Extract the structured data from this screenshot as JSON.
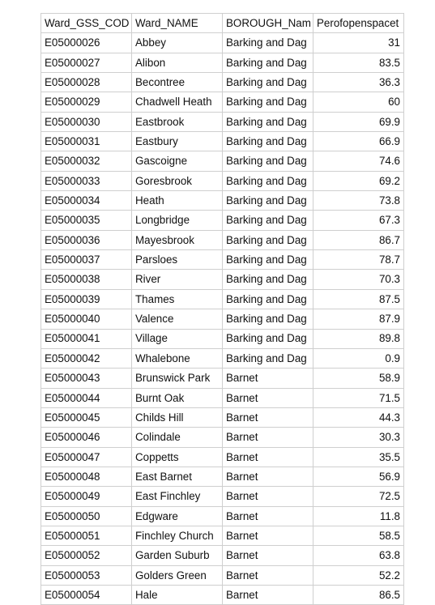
{
  "headers": [
    "Ward_GSS_COD",
    "Ward_NAME",
    "BOROUGH_Nam",
    "Perofopenspacet"
  ],
  "rows": [
    [
      "E05000026",
      "Abbey",
      "Barking and Dag",
      "31"
    ],
    [
      "E05000027",
      "Alibon",
      "Barking and Dag",
      "83.5"
    ],
    [
      "E05000028",
      "Becontree",
      "Barking and Dag",
      "36.3"
    ],
    [
      "E05000029",
      "Chadwell Heath",
      "Barking and Dag",
      "60"
    ],
    [
      "E05000030",
      "Eastbrook",
      "Barking and Dag",
      "69.9"
    ],
    [
      "E05000031",
      "Eastbury",
      "Barking and Dag",
      "66.9"
    ],
    [
      "E05000032",
      "Gascoigne",
      "Barking and Dag",
      "74.6"
    ],
    [
      "E05000033",
      "Goresbrook",
      "Barking and Dag",
      "69.2"
    ],
    [
      "E05000034",
      "Heath",
      "Barking and Dag",
      "73.8"
    ],
    [
      "E05000035",
      "Longbridge",
      "Barking and Dag",
      "67.3"
    ],
    [
      "E05000036",
      "Mayesbrook",
      "Barking and Dag",
      "86.7"
    ],
    [
      "E05000037",
      "Parsloes",
      "Barking and Dag",
      "78.7"
    ],
    [
      "E05000038",
      "River",
      "Barking and Dag",
      "70.3"
    ],
    [
      "E05000039",
      "Thames",
      "Barking and Dag",
      "87.5"
    ],
    [
      "E05000040",
      "Valence",
      "Barking and Dag",
      "87.9"
    ],
    [
      "E05000041",
      "Village",
      "Barking and Dag",
      "89.8"
    ],
    [
      "E05000042",
      "Whalebone",
      "Barking and Dag",
      "0.9"
    ],
    [
      "E05000043",
      "Brunswick Park",
      "Barnet",
      "58.9"
    ],
    [
      "E05000044",
      "Burnt Oak",
      "Barnet",
      "71.5"
    ],
    [
      "E05000045",
      "Childs Hill",
      "Barnet",
      "44.3"
    ],
    [
      "E05000046",
      "Colindale",
      "Barnet",
      "30.3"
    ],
    [
      "E05000047",
      "Coppetts",
      "Barnet",
      "35.5"
    ],
    [
      "E05000048",
      "East Barnet",
      "Barnet",
      "56.9"
    ],
    [
      "E05000049",
      "East Finchley",
      "Barnet",
      "72.5"
    ],
    [
      "E05000050",
      "Edgware",
      "Barnet",
      "11.8"
    ],
    [
      "E05000051",
      "Finchley Church",
      "Barnet",
      "58.5"
    ],
    [
      "E05000052",
      "Garden Suburb",
      "Barnet",
      "63.8"
    ],
    [
      "E05000053",
      "Golders Green",
      "Barnet",
      "52.2"
    ],
    [
      "E05000054",
      "Hale",
      "Barnet",
      "86.5"
    ]
  ]
}
